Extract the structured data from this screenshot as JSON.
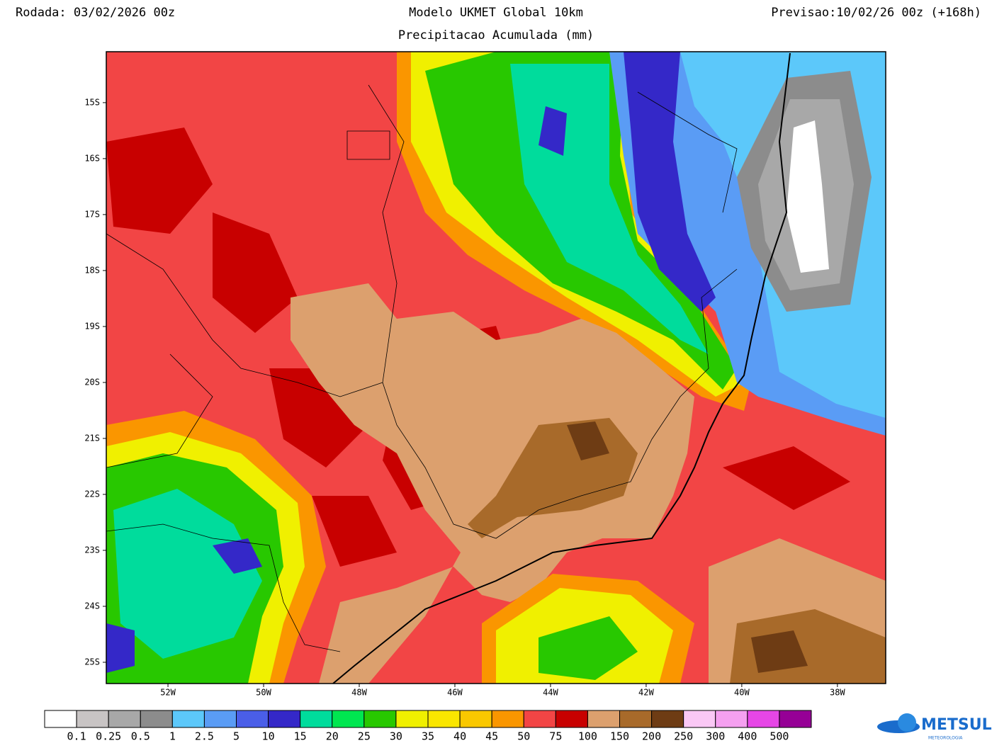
{
  "header": {
    "run": "Rodada: 03/02/2026 00z",
    "title": "Modelo UKMET Global 10km",
    "subtitle": "Precipitacao Acumulada (mm)",
    "forecast": "Previsao:10/02/26 00z (+168h)"
  },
  "map": {
    "lonlim": [
      -53.29,
      -36.99
    ],
    "latlim": [
      -25.38,
      -14.09
    ],
    "lonticks": [
      {
        "value": -52,
        "label": "52W"
      },
      {
        "value": -50,
        "label": "50W"
      },
      {
        "value": -48,
        "label": "48W"
      },
      {
        "value": -46,
        "label": "46W"
      },
      {
        "value": -44,
        "label": "44W"
      },
      {
        "value": -42,
        "label": "42W"
      },
      {
        "value": -40,
        "label": "40W"
      },
      {
        "value": -38,
        "label": "38W"
      }
    ],
    "latticks": [
      {
        "value": -15,
        "label": "15S"
      },
      {
        "value": -16,
        "label": "16S"
      },
      {
        "value": -17,
        "label": "17S"
      },
      {
        "value": -18,
        "label": "18S"
      },
      {
        "value": -19,
        "label": "19S"
      },
      {
        "value": -20,
        "label": "20S"
      },
      {
        "value": -21,
        "label": "21S"
      },
      {
        "value": -22,
        "label": "22S"
      },
      {
        "value": -23,
        "label": "23S"
      },
      {
        "value": -24,
        "label": "24S"
      },
      {
        "value": -25,
        "label": "25S"
      }
    ]
  },
  "colorbar": {
    "colors": [
      "#ffffff",
      "#c8c4c4",
      "#a8a8a8",
      "#8c8c8c",
      "#5cc8fa",
      "#5a9cf5",
      "#4a5ee8",
      "#3428c8",
      "#00dc9c",
      "#00e650",
      "#28c800",
      "#f0f000",
      "#fae600",
      "#fac800",
      "#fa9600",
      "#f24545",
      "#c80000",
      "#dca06e",
      "#a86a2a",
      "#6e3c14",
      "#fac8f5",
      "#f5a0f0",
      "#e646e6",
      "#960096"
    ],
    "labels": [
      0.1,
      0.25,
      0.5,
      1,
      2.5,
      5,
      10,
      15,
      20,
      25,
      30,
      35,
      40,
      45,
      50,
      75,
      100,
      150,
      200,
      250,
      300,
      400,
      500
    ]
  },
  "logo": {
    "name": "METSUL",
    "tagline": "METEOROLOGIA"
  }
}
